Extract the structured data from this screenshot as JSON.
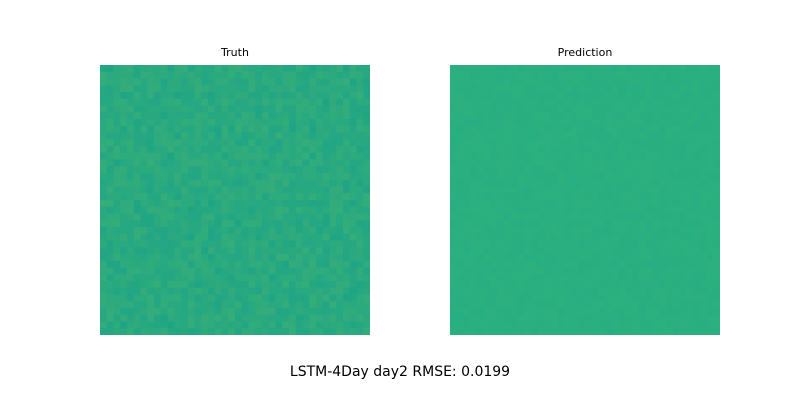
{
  "chart_data": [
    {
      "type": "heatmap",
      "title": "Truth",
      "colormap": "viridis",
      "base_color": "#2aa97f",
      "grid": false,
      "axes_visible": false
    },
    {
      "type": "heatmap",
      "title": "Prediction",
      "colormap": "viridis",
      "base_color": "#2aaf80",
      "grid": false,
      "axes_visible": false
    }
  ],
  "suptitle": "LSTM-4Day day2 RMSE: 0.0199"
}
